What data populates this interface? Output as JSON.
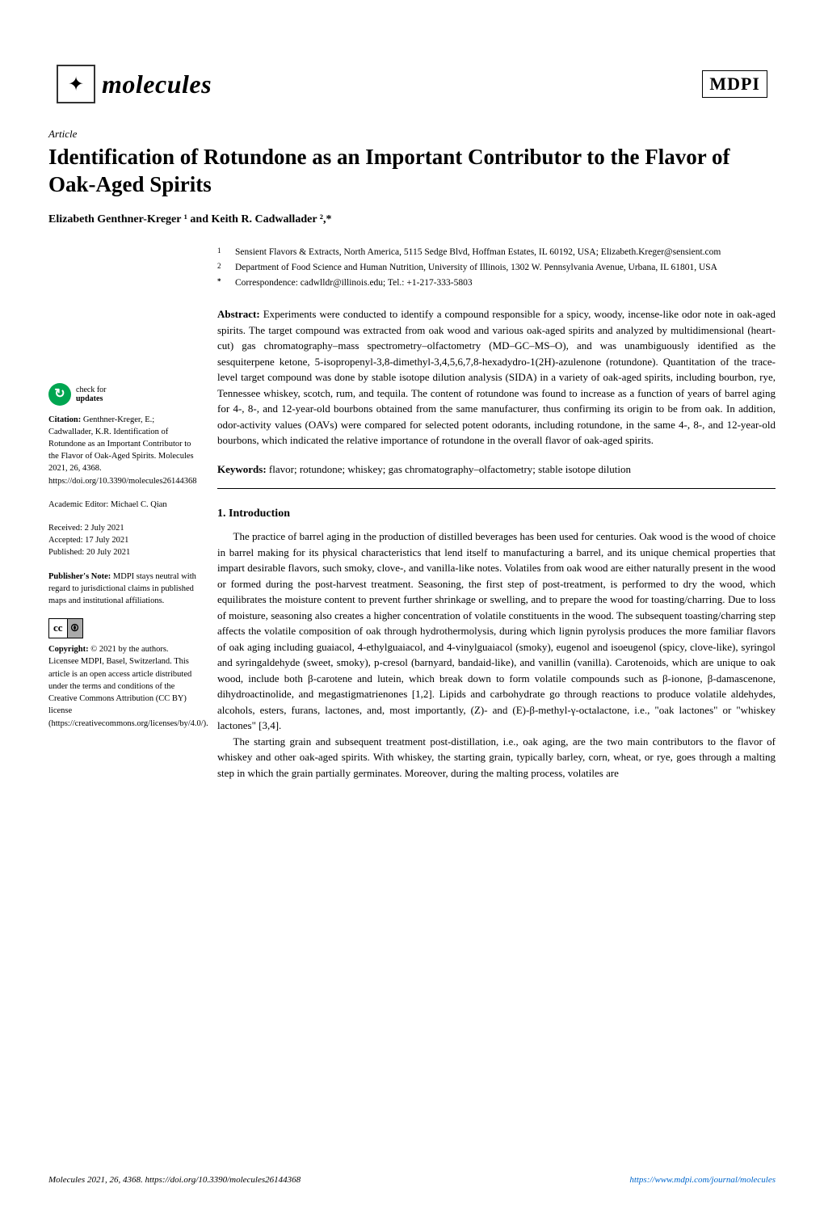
{
  "journal": {
    "name": "molecules",
    "icon_glyph": "✦",
    "publisher": "MDPI"
  },
  "article": {
    "type": "Article",
    "title": "Identification of Rotundone as an Important Contributor to the Flavor of Oak-Aged Spirits",
    "authors_html": "Elizabeth Genthner-Kreger ¹ and Keith R. Cadwallader ²,*"
  },
  "affiliations": {
    "a1_num": "1",
    "a1_text": "Sensient Flavors & Extracts, North America, 5115 Sedge Blvd, Hoffman Estates, IL 60192, USA; Elizabeth.Kreger@sensient.com",
    "a2_num": "2",
    "a2_text": "Department of Food Science and Human Nutrition, University of Illinois, 1302 W. Pennsylvania Avenue, Urbana, IL 61801, USA",
    "corr_num": "*",
    "corr_text": "Correspondence: cadwlldr@illinois.edu; Tel.: +1-217-333-5803"
  },
  "abstract": {
    "label": "Abstract:",
    "text": "Experiments were conducted to identify a compound responsible for a spicy, woody, incense-like odor note in oak-aged spirits. The target compound was extracted from oak wood and various oak-aged spirits and analyzed by multidimensional (heart-cut) gas chromatography–mass spectrometry–olfactometry (MD–GC–MS–O), and was unambiguously identified as the sesquiterpene ketone, 5-isopropenyl-3,8-dimethyl-3,4,5,6,7,8-hexadydro-1(2H)-azulenone (rotundone). Quantitation of the trace-level target compound was done by stable isotope dilution analysis (SIDA) in a variety of oak-aged spirits, including bourbon, rye, Tennessee whiskey, scotch, rum, and tequila. The content of rotundone was found to increase as a function of years of barrel aging for 4-, 8-, and 12-year-old bourbons obtained from the same manufacturer, thus confirming its origin to be from oak. In addition, odor-activity values (OAVs) were compared for selected potent odorants, including rotundone, in the same 4-, 8-, and 12-year-old bourbons, which indicated the relative importance of rotundone in the overall flavor of oak-aged spirits."
  },
  "keywords": {
    "label": "Keywords:",
    "text": "flavor; rotundone; whiskey; gas chromatography–olfactometry; stable isotope dilution"
  },
  "sidebar": {
    "check_line1": "check for",
    "check_line2": "updates",
    "citation_label": "Citation:",
    "citation_text": "Genthner-Kreger, E.; Cadwallader, K.R. Identification of Rotundone as an Important Contributor to the Flavor of Oak-Aged Spirits. Molecules 2021, 26, 4368. https://doi.org/10.3390/molecules26144368",
    "editor_label": "Academic Editor:",
    "editor_text": "Michael C. Qian",
    "received": "Received: 2 July 2021",
    "accepted": "Accepted: 17 July 2021",
    "published": "Published: 20 July 2021",
    "note_label": "Publisher's Note:",
    "note_text": "MDPI stays neutral with regard to jurisdictional claims in published maps and institutional affiliations.",
    "cc_glyph": "cc",
    "by_glyph": "🅯",
    "copyright_label": "Copyright:",
    "copyright_text": "© 2021 by the authors. Licensee MDPI, Basel, Switzerland. This article is an open access article distributed under the terms and conditions of the Creative Commons Attribution (CC BY) license (https://creativecommons.org/licenses/by/4.0/)."
  },
  "body": {
    "section1_heading": "1. Introduction",
    "para1": "The practice of barrel aging in the production of distilled beverages has been used for centuries. Oak wood is the wood of choice in barrel making for its physical characteristics that lend itself to manufacturing a barrel, and its unique chemical properties that impart desirable flavors, such smoky, clove-, and vanilla-like notes. Volatiles from oak wood are either naturally present in the wood or formed during the post-harvest treatment. Seasoning, the first step of post-treatment, is performed to dry the wood, which equilibrates the moisture content to prevent further shrinkage or swelling, and to prepare the wood for toasting/charring. Due to loss of moisture, seasoning also creates a higher concentration of volatile constituents in the wood. The subsequent toasting/charring step affects the volatile composition of oak through hydrothermolysis, during which lignin pyrolysis produces the more familiar flavors of oak aging including guaiacol, 4-ethylguaiacol, and 4-vinylguaiacol (smoky), eugenol and isoeugenol (spicy, clove-like), syringol and syringaldehyde (sweet, smoky), p-cresol (barnyard, bandaid-like), and vanillin (vanilla). Carotenoids, which are unique to oak wood, include both β-carotene and lutein, which break down to form volatile compounds such as β-ionone, β-damascenone, dihydroactinolide, and megastigmatrienones [1,2]. Lipids and carbohydrate go through reactions to produce volatile aldehydes, alcohols, esters, furans, lactones, and, most importantly, (Z)- and (E)-β-methyl-γ-octalactone, i.e., \"oak lactones\" or \"whiskey lactones\" [3,4].",
    "para2": "The starting grain and subsequent treatment post-distillation, i.e., oak aging, are the two main contributors to the flavor of whiskey and other oak-aged spirits. With whiskey, the starting grain, typically barley, corn, wheat, or rye, goes through a malting step in which the grain partially germinates. Moreover, during the malting process, volatiles are"
  },
  "footer": {
    "left": "Molecules 2021, 26, 4368. https://doi.org/10.3390/molecules26144368",
    "right": "https://www.mdpi.com/journal/molecules"
  },
  "colors": {
    "link": "#0066cc",
    "check_green": "#00a651",
    "text": "#000000",
    "bg": "#ffffff"
  },
  "typography": {
    "title_fontsize": 27,
    "body_fontsize": 13,
    "sidebar_fontsize": 10.5,
    "affil_fontsize": 11.5,
    "footer_fontsize": 11
  }
}
